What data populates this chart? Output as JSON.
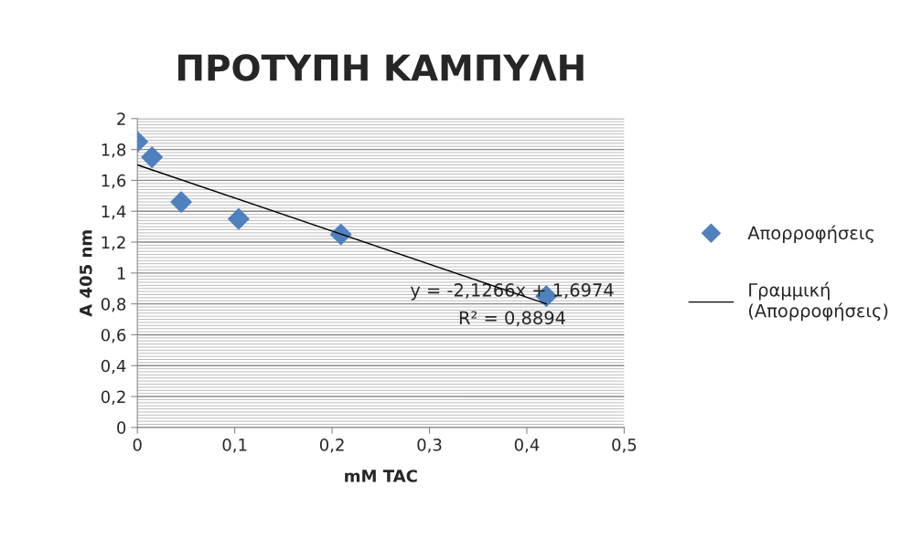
{
  "chart_data": {
    "type": "scatter",
    "title": "ΠΡΟΤΥΠΗ ΚΑΜΠΥΛΗ",
    "xlabel": "mM TAC",
    "ylabel": "A 405 nm",
    "series": [
      {
        "name": "Απορροφήσεις",
        "color": "#4f81bd",
        "marker": "diamond",
        "x": [
          0,
          0.015,
          0.045,
          0.104,
          0.209,
          0.42
        ],
        "values": [
          1.85,
          1.75,
          1.46,
          1.35,
          1.25,
          0.85
        ]
      },
      {
        "name": "Γραμμική\n(Απορροφήσεις)",
        "type": "line",
        "color": "#000000",
        "marker": "none",
        "line_style": "solid",
        "x": [
          0,
          0.42
        ],
        "values": [
          1.7,
          0.8
        ]
      }
    ],
    "annotations": [
      "y = -2,1266x + 1,6974",
      "R² = 0,8894"
    ],
    "xlim": [
      0,
      0.5
    ],
    "ylim": [
      0,
      2
    ],
    "xticks": [
      0,
      {
        "value": 0.1,
        "label": "0,1"
      },
      {
        "value": 0.2,
        "label": "0,2"
      },
      {
        "value": 0.3,
        "label": "0,3"
      },
      {
        "value": 0.4,
        "label": "0,4"
      },
      {
        "value": 0.5,
        "label": "0,5"
      }
    ],
    "yticks": [
      0,
      {
        "value": 0.2,
        "label": "0,2"
      },
      {
        "value": 0.4,
        "label": "0,4"
      },
      {
        "value": 0.6,
        "label": "0,6"
      },
      {
        "value": 0.8,
        "label": "0,8"
      },
      1,
      {
        "value": 1.2,
        "label": "1,2"
      },
      {
        "value": 1.4,
        "label": "1,4"
      },
      {
        "value": 1.6,
        "label": "1,6"
      },
      {
        "value": 1.8,
        "label": "1,8"
      },
      2
    ],
    "grid": "y",
    "legend": "right"
  }
}
